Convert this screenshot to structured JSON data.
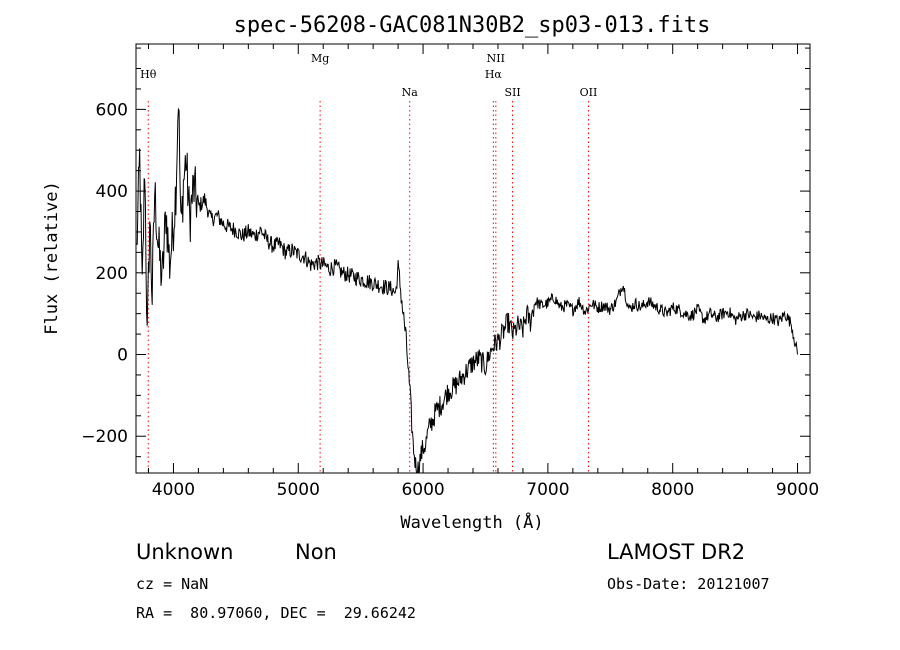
{
  "chart_data": {
    "type": "line",
    "title": "spec-56208-GAC081N30B2_sp03-013.fits",
    "xlabel": "Wavelength (Å)",
    "ylabel": "Flux (relative)",
    "xlim": [
      3700,
      9100
    ],
    "ylim": [
      -290,
      760
    ],
    "xticks": [
      4000,
      5000,
      6000,
      7000,
      8000,
      9000
    ],
    "yticks": [
      -200,
      0,
      200,
      400,
      600
    ],
    "grid": false,
    "line_color": "#000000",
    "marker_color": "#ff0000",
    "spectrum": {
      "x": [
        3705,
        3730,
        3750,
        3770,
        3790,
        3810,
        3830,
        3850,
        3880,
        3910,
        3940,
        3970,
        4000,
        4020,
        4040,
        4060,
        4080,
        4100,
        4130,
        4160,
        4200,
        4250,
        4300,
        4350,
        4400,
        4450,
        4500,
        4550,
        4600,
        4650,
        4700,
        4750,
        4800,
        4850,
        4900,
        4950,
        5000,
        5050,
        5100,
        5150,
        5200,
        5250,
        5300,
        5350,
        5400,
        5450,
        5500,
        5550,
        5600,
        5650,
        5700,
        5750,
        5780,
        5800,
        5820,
        5840,
        5860,
        5880,
        5900,
        5920,
        5940,
        5960,
        5980,
        6000,
        6020,
        6040,
        6060,
        6080,
        6100,
        6150,
        6200,
        6250,
        6300,
        6350,
        6400,
        6450,
        6500,
        6530,
        6560,
        6590,
        6620,
        6650,
        6680,
        6720,
        6760,
        6800,
        6830,
        6860,
        6880,
        6900,
        6950,
        7000,
        7050,
        7100,
        7150,
        7200,
        7250,
        7300,
        7350,
        7400,
        7450,
        7500,
        7550,
        7600,
        7650,
        7700,
        7750,
        7800,
        7850,
        7900,
        7950,
        8000,
        8050,
        8100,
        8150,
        8200,
        8250,
        8300,
        8350,
        8400,
        8450,
        8500,
        8550,
        8600,
        8650,
        8700,
        8750,
        8800,
        8850,
        8900,
        8950,
        9000
      ],
      "y": [
        250,
        480,
        150,
        470,
        30,
        330,
        140,
        400,
        260,
        180,
        350,
        220,
        320,
        410,
        640,
        300,
        420,
        480,
        330,
        410,
        360,
        380,
        330,
        340,
        320,
        310,
        305,
        290,
        300,
        290,
        305,
        280,
        265,
        270,
        250,
        255,
        245,
        240,
        220,
        225,
        220,
        210,
        215,
        200,
        195,
        190,
        185,
        180,
        175,
        170,
        165,
        160,
        150,
        210,
        160,
        100,
        50,
        -30,
        -120,
        -220,
        -270,
        -280,
        -250,
        -230,
        -220,
        -190,
        -170,
        -160,
        -140,
        -120,
        -90,
        -80,
        -60,
        -40,
        -20,
        -10,
        -30,
        0,
        20,
        30,
        40,
        60,
        80,
        50,
        70,
        60,
        100,
        80,
        110,
        130,
        120,
        125,
        140,
        115,
        120,
        110,
        130,
        105,
        125,
        115,
        120,
        110,
        130,
        175,
        110,
        125,
        115,
        130,
        120,
        110,
        100,
        115,
        110,
        100,
        95,
        110,
        85,
        100,
        90,
        100,
        105,
        85,
        95,
        100,
        90,
        95,
        85,
        90,
        80,
        100,
        75,
        0
      ]
    },
    "lines": [
      {
        "label": "Hθ",
        "wavelength": 3798
      },
      {
        "label": "Mg",
        "wavelength": 5175
      },
      {
        "label": "Na",
        "wavelength": 5893
      },
      {
        "label": "NII",
        "wavelength": 6583
      },
      {
        "label": "Hα",
        "wavelength": 6563
      },
      {
        "label": "SII",
        "wavelength": 6717
      },
      {
        "label": "OII",
        "wavelength": 7325
      }
    ]
  },
  "info": {
    "class": "Unknown",
    "subclass": "Non",
    "survey": "LAMOST DR2",
    "cz": "cz = NaN",
    "obs_date": "Obs-Date: 20121007",
    "radec": "RA =  80.97060, DEC =  29.66242"
  }
}
